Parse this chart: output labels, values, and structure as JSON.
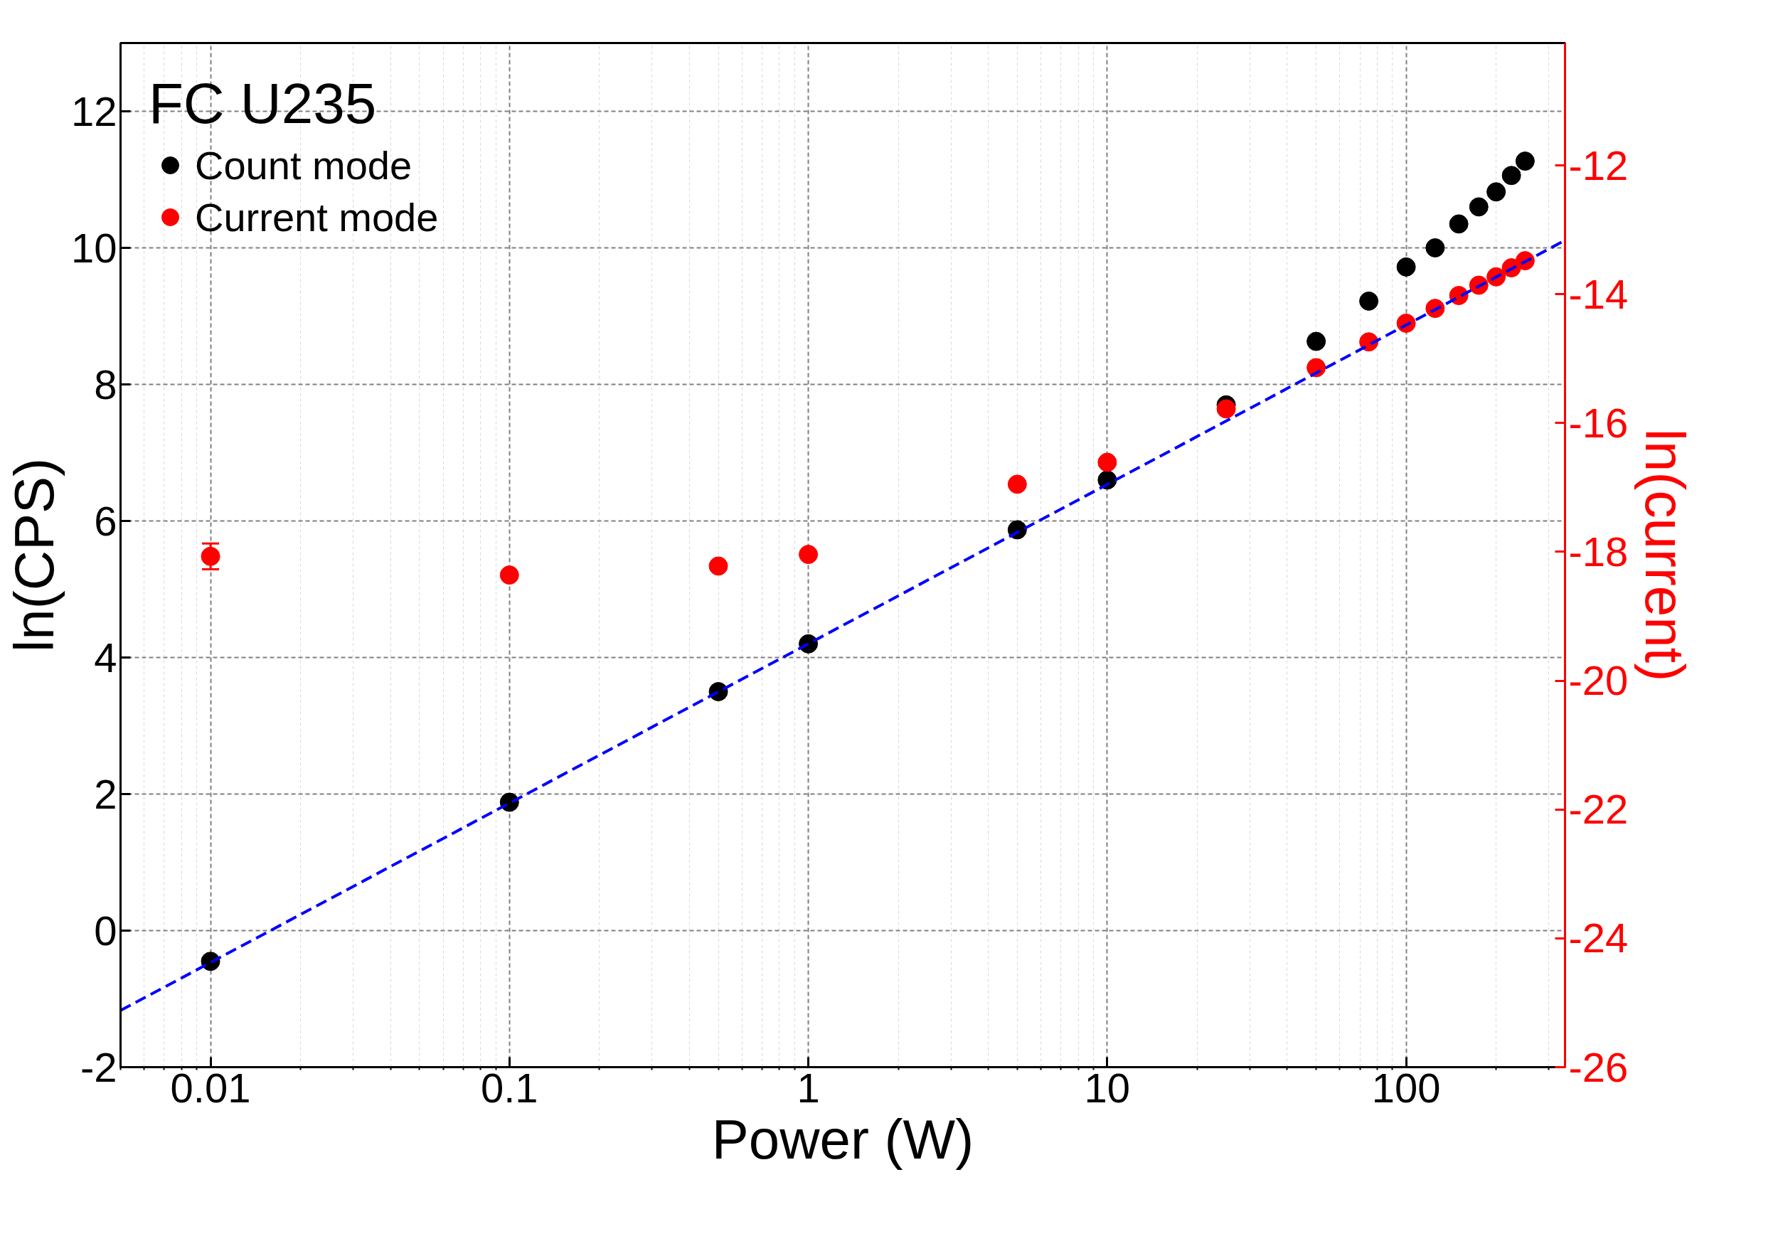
{
  "chart_data": {
    "type": "scatter",
    "xlabel": "Power (W)",
    "ylabel": "ln(CPS)",
    "y2label": "ln(current)",
    "legend_title": "FC U235",
    "log": "x",
    "grid": true,
    "legend": "top left",
    "marker": "circle",
    "xlim": [
      0.005,
      340
    ],
    "xticks": [
      0.01,
      0.1,
      1,
      10,
      100
    ],
    "ylim": [
      -2,
      13
    ],
    "yticks": [
      -2,
      0,
      2,
      4,
      6,
      8,
      10,
      12
    ],
    "y2lim": [
      -26,
      -10.1
    ],
    "y2ticks": [
      -26,
      -24,
      -22,
      -20,
      -18,
      -16,
      -14,
      -12
    ],
    "series": [
      {
        "name": "Count mode",
        "color": "#000000",
        "x": [
          0.01,
          0.1,
          0.5,
          1,
          5,
          10,
          25,
          50,
          75,
          100,
          125,
          150,
          175,
          200,
          225,
          250
        ],
        "values": [
          -0.45,
          1.88,
          3.5,
          4.2,
          5.87,
          6.6,
          7.7,
          8.63,
          9.22,
          9.72,
          10.0,
          10.35,
          10.6,
          10.82,
          11.06,
          11.27
        ]
      },
      {
        "name": "Current mode",
        "color": "#ff0000",
        "axis": "y2",
        "x": [
          0.01,
          0.1,
          0.5,
          1,
          5,
          10,
          25,
          50,
          75,
          100,
          125,
          150,
          175,
          200,
          225,
          250
        ],
        "values": [
          -18.07,
          -18.36,
          -18.22,
          -18.04,
          -16.95,
          -16.61,
          -15.78,
          -15.14,
          -14.74,
          -14.45,
          -14.22,
          -14.02,
          -13.86,
          -13.73,
          -13.59,
          -13.48
        ],
        "errors": [
          0.2,
          null,
          null,
          null,
          null,
          null,
          null,
          null,
          null,
          null,
          null,
          null,
          null,
          null,
          null,
          null
        ]
      },
      {
        "type": "line",
        "marker": "none",
        "color": "#0000ff",
        "line_style": "dashed",
        "x": [
          0.005,
          340
        ],
        "values": [
          -1.17,
          10.11
        ]
      }
    ]
  }
}
